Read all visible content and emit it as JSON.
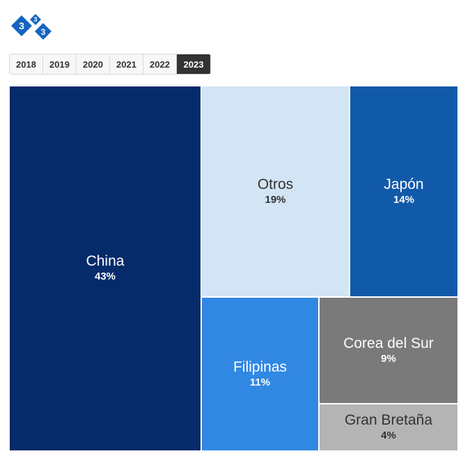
{
  "logo": {
    "icon": "three-diamonds-logo",
    "digits": [
      "3",
      "3",
      "3"
    ],
    "color": "#1565c0"
  },
  "year_tabs": {
    "items": [
      "2018",
      "2019",
      "2020",
      "2021",
      "2022",
      "2023"
    ],
    "selected": "2023"
  },
  "chart_data": {
    "type": "treemap",
    "title": "",
    "items": [
      {
        "name": "China",
        "label": "43%",
        "value": 43,
        "color": "#062b6b",
        "text_color": "#ffffff"
      },
      {
        "name": "Otros",
        "label": "19%",
        "value": 19,
        "color": "#d3e4f5",
        "text_color": "#333333"
      },
      {
        "name": "Japón",
        "label": "14%",
        "value": 14,
        "color": "#115aaa",
        "text_color": "#ffffff"
      },
      {
        "name": "Filipinas",
        "label": "11%",
        "value": 11,
        "color": "#3188e3",
        "text_color": "#ffffff"
      },
      {
        "name": "Corea del Sur",
        "label": "9%",
        "value": 9,
        "color": "#7a7a7a",
        "text_color": "#ffffff"
      },
      {
        "name": "Gran Bretaña",
        "label": "4%",
        "value": 4,
        "color": "#b4b4b4",
        "text_color": "#333333"
      }
    ]
  }
}
